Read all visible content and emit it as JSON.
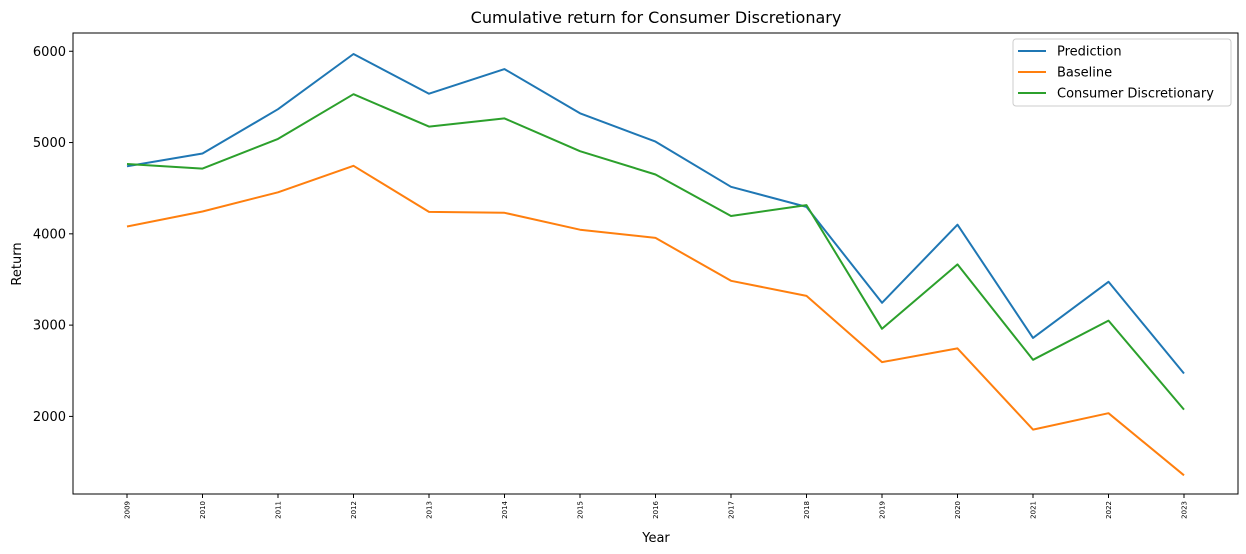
{
  "chart_data": {
    "type": "line",
    "title": "Cumulative return for Consumer Discretionary",
    "xlabel": "Year",
    "ylabel": "Return",
    "categories": [
      "2009",
      "2010",
      "2011",
      "2012",
      "2013",
      "2014",
      "2015",
      "2016",
      "2017",
      "2018",
      "2019",
      "2020",
      "2021",
      "2022",
      "2023"
    ],
    "yticks": [
      2000,
      3000,
      4000,
      5000,
      6000
    ],
    "ylim": [
      1150,
      6200
    ],
    "grid": false,
    "legend_position": "top-right",
    "series": [
      {
        "name": "Prediction",
        "color": "#1f77b4",
        "values": [
          4740,
          4880,
          5365,
          5970,
          5535,
          5805,
          5320,
          5010,
          4515,
          4295,
          3245,
          4100,
          2860,
          3475,
          2470
        ]
      },
      {
        "name": "Baseline",
        "color": "#ff7f0e",
        "values": [
          4080,
          4245,
          4455,
          4745,
          4240,
          4230,
          4045,
          3955,
          3485,
          3320,
          2595,
          2745,
          1855,
          2035,
          1355
        ]
      },
      {
        "name": "Consumer Discretionary",
        "color": "#2ca02c",
        "values": [
          4765,
          4715,
          5040,
          5530,
          5175,
          5265,
          4905,
          4650,
          4195,
          4315,
          2960,
          3665,
          2620,
          3050,
          2075
        ]
      }
    ]
  }
}
